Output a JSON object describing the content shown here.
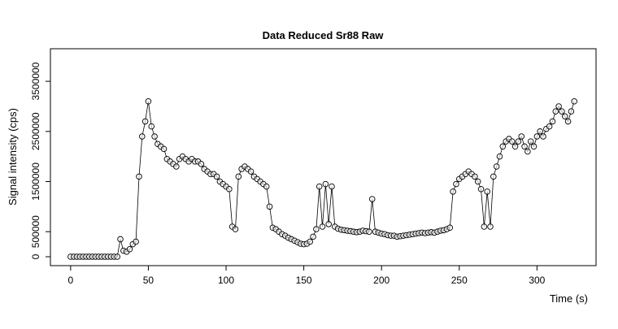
{
  "chart_data": {
    "type": "line",
    "title": "Data Reduced Sr88 Raw",
    "x_label": "Time (s)",
    "y_label": "Signal intensity (cps)",
    "x": [
      0,
      2,
      4,
      6,
      8,
      10,
      12,
      14,
      16,
      18,
      20,
      22,
      24,
      26,
      28,
      30,
      32,
      34,
      36,
      38,
      40,
      42,
      44,
      46,
      48,
      50,
      52,
      54,
      56,
      58,
      60,
      62,
      64,
      66,
      68,
      70,
      72,
      74,
      76,
      78,
      80,
      82,
      84,
      86,
      88,
      90,
      92,
      94,
      96,
      98,
      100,
      102,
      104,
      106,
      108,
      110,
      112,
      114,
      116,
      118,
      120,
      122,
      124,
      126,
      128,
      130,
      132,
      134,
      136,
      138,
      140,
      142,
      144,
      146,
      148,
      150,
      152,
      154,
      156,
      158,
      160,
      162,
      164,
      166,
      168,
      170,
      172,
      174,
      176,
      178,
      180,
      182,
      184,
      186,
      188,
      190,
      192,
      194,
      196,
      198,
      200,
      202,
      204,
      206,
      208,
      210,
      212,
      214,
      216,
      218,
      220,
      222,
      224,
      226,
      228,
      230,
      232,
      234,
      236,
      238,
      240,
      242,
      244,
      246,
      248,
      250,
      252,
      254,
      256,
      258,
      260,
      262,
      264,
      266,
      268,
      270,
      272,
      274,
      276,
      278,
      280,
      282,
      284,
      286,
      288,
      290,
      292,
      294,
      296,
      298,
      300,
      302,
      304,
      306,
      308,
      310,
      312,
      314,
      316,
      318,
      320,
      322,
      324
    ],
    "series": [
      {
        "color": "#000000",
        "values": [
          0,
          0,
          0,
          0,
          0,
          0,
          0,
          0,
          0,
          0,
          0,
          0,
          0,
          0,
          0,
          0,
          350000,
          120000,
          100000,
          150000,
          250000,
          300000,
          1600000,
          2400000,
          2700000,
          3100000,
          2600000,
          2400000,
          2250000,
          2200000,
          2150000,
          1950000,
          1900000,
          1850000,
          1800000,
          1950000,
          2000000,
          1950000,
          1900000,
          1950000,
          1900000,
          1900000,
          1850000,
          1750000,
          1700000,
          1650000,
          1650000,
          1600000,
          1500000,
          1450000,
          1400000,
          1350000,
          600000,
          550000,
          1600000,
          1750000,
          1800000,
          1750000,
          1700000,
          1600000,
          1550000,
          1500000,
          1450000,
          1400000,
          1000000,
          580000,
          550000,
          500000,
          450000,
          420000,
          380000,
          350000,
          320000,
          290000,
          260000,
          250000,
          260000,
          300000,
          400000,
          550000,
          1400000,
          600000,
          1450000,
          650000,
          1400000,
          600000,
          560000,
          540000,
          530000,
          520000,
          510000,
          500000,
          490000,
          500000,
          520000,
          510000,
          500000,
          1150000,
          500000,
          480000,
          460000,
          450000,
          430000,
          420000,
          420000,
          400000,
          410000,
          420000,
          430000,
          440000,
          450000,
          460000,
          470000,
          480000,
          470000,
          480000,
          490000,
          480000,
          500000,
          520000,
          530000,
          550000,
          580000,
          1300000,
          1450000,
          1550000,
          1600000,
          1650000,
          1700000,
          1650000,
          1600000,
          1500000,
          1350000,
          600000,
          1300000,
          600000,
          1600000,
          1800000,
          2000000,
          2200000,
          2300000,
          2350000,
          2300000,
          2200000,
          2300000,
          2400000,
          2200000,
          2100000,
          2300000,
          2200000,
          2400000,
          2500000,
          2400000,
          2550000,
          2600000,
          2700000,
          2900000,
          3000000,
          2900000,
          2800000,
          2700000,
          2900000,
          3100000
        ]
      }
    ],
    "xlim": [
      -13,
      338
    ],
    "xticks": [
      0,
      50,
      100,
      150,
      200,
      250,
      300
    ],
    "ylim": [
      -178000,
      4150000
    ],
    "yticks": [
      0,
      500000,
      1500000,
      2500000,
      3500000
    ]
  }
}
